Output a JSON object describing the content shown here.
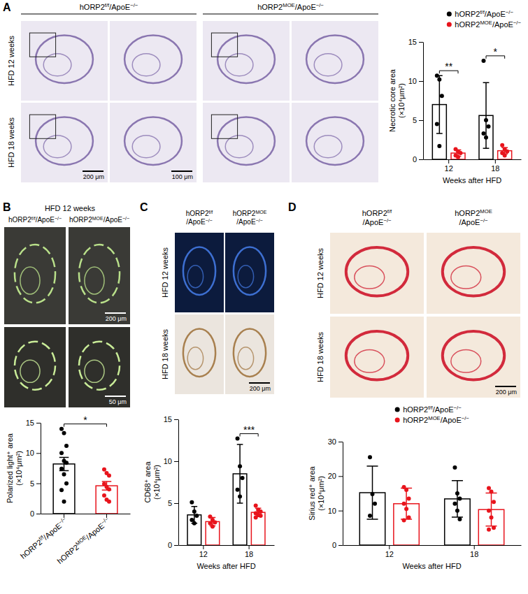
{
  "chart_data": [
    {
      "type": "bar",
      "y_label": "Necrotic core area (×10⁴μm²)",
      "x_label": "Weeks after HFD",
      "categories": [
        "12",
        "18"
      ],
      "series": [
        {
          "name": "hORP2f/f/ApoE−/−",
          "color": "#000000",
          "values": [
            7.0,
            5.6
          ],
          "errors": [
            3.7,
            4.2
          ],
          "points": [
            [
              10.7,
              10.2,
              8.1,
              4.5,
              1.7
            ],
            [
              12.6,
              5.0,
              4.2,
              3.3,
              2.8
            ]
          ]
        },
        {
          "name": "hORP2MOE/ApoE−/−",
          "color": "#e8141c",
          "values": [
            0.8,
            1.1
          ],
          "errors": [
            0.4,
            0.4
          ],
          "points": [
            [
              1.3,
              1.0,
              0.8,
              0.5,
              0.3
            ],
            [
              1.8,
              1.3,
              1.0,
              0.8,
              0.5
            ]
          ]
        }
      ],
      "ylim": [
        0,
        15
      ],
      "yticks": [
        0,
        5,
        10,
        15
      ],
      "legend": "top-right",
      "annotations": [
        {
          "text": "**",
          "x": "12"
        },
        {
          "text": "*",
          "x": "18"
        }
      ]
    },
    {
      "type": "bar",
      "y_label": "Polarized light⁺ area (×10⁴μm²)",
      "categories": [
        "hORP2f/f/ApoE−/−",
        "hORP2MOE/ApoE−/−"
      ],
      "colors": [
        "#000000",
        "#e8141c"
      ],
      "values": [
        8.2,
        4.6
      ],
      "errors": [
        1.1,
        0.7
      ],
      "points": [
        [
          14.0,
          13.3,
          11.2,
          10.0,
          8.7,
          8.4,
          7.4,
          6.5,
          5.0,
          3.9,
          2.0
        ],
        [
          7.3,
          6.7,
          6.3,
          4.9,
          4.4,
          4.0,
          3.0,
          2.3,
          2.0
        ]
      ],
      "ylim": [
        0,
        15
      ],
      "yticks": [
        0,
        5,
        10,
        15
      ],
      "annotations": [
        {
          "text": "*",
          "x": [
            "hORP2f/f/ApoE−/−",
            "hORP2MOE/ApoE−/−"
          ]
        }
      ]
    },
    {
      "type": "bar",
      "y_label": "CD68⁺ area (×10⁴μm²)",
      "x_label": "Weeks after HFD",
      "categories": [
        "12",
        "18"
      ],
      "series": [
        {
          "name": "hORP2f/f/ApoE−/−",
          "color": "#000000",
          "values": [
            3.6,
            8.5
          ],
          "errors": [
            1.0,
            3.5
          ],
          "points": [
            [
              5.1,
              4.0,
              3.5,
              3.0,
              2.6
            ],
            [
              12.7,
              9.4,
              8.0,
              6.6,
              5.8
            ]
          ]
        },
        {
          "name": "hORP2MOE/ApoE−/−",
          "color": "#e8141c",
          "values": [
            2.8,
            3.9
          ],
          "errors": [
            0.5,
            0.5
          ],
          "points": [
            [
              3.4,
              3.0,
              2.7,
              2.6,
              2.2
            ],
            [
              4.7,
              4.2,
              4.0,
              3.8,
              3.6,
              3.5,
              3.3
            ]
          ]
        }
      ],
      "ylim": [
        0,
        15
      ],
      "yticks": [
        0,
        5,
        10,
        15
      ],
      "annotations": [
        {
          "text": "***",
          "x": "18"
        }
      ]
    },
    {
      "type": "bar",
      "y_label": "Sirius red⁺ area (×10⁴μm²)",
      "x_label": "Weeks after HFD",
      "categories": [
        "12",
        "18"
      ],
      "series": [
        {
          "name": "hORP2f/f/ApoE−/−",
          "color": "#000000",
          "values": [
            15.2,
            13.4
          ],
          "errors": [
            7.7,
            5.3
          ],
          "points": [
            [
              25.5,
              14.8,
              12.0,
              8.5
            ],
            [
              22.5,
              15.0,
              13.5,
              12.0,
              10.0,
              7.5
            ]
          ]
        },
        {
          "name": "hORP2MOE/ApoE−/−",
          "color": "#e8141c",
          "values": [
            12.0,
            10.3
          ],
          "errors": [
            4.5,
            4.8
          ],
          "points": [
            [
              16.8,
              16.0,
              13.5,
              12.0,
              10.5,
              8.0,
              7.2
            ],
            [
              16.5,
              15.5,
              12.5,
              10.0,
              8.0,
              5.0,
              4.5
            ]
          ]
        }
      ],
      "ylim": [
        0,
        30
      ],
      "yticks": [
        0,
        10,
        20,
        30
      ],
      "legend": "top"
    }
  ],
  "micrographs": [
    {
      "letter": "A",
      "columns": [
        "hORP2f/f/ApoE−/−",
        "hORP2MOE/ApoE−/−"
      ],
      "rows": [
        "HFD 12 weeks",
        "HFD 18 weeks"
      ],
      "scale_bar_labels": [
        [
          null,
          null,
          null,
          null
        ],
        [
          "200 μm",
          "100 μm",
          null,
          null
        ]
      ]
    },
    {
      "letter": "B",
      "title": "HFD 12 weeks",
      "columns": [
        "hORP2f/f/ApoE−/−",
        "hORP2MOE/ApoE−/−"
      ],
      "scale_bar_labels": [
        [
          null,
          "200 μm"
        ],
        [
          null,
          "50 μm"
        ]
      ]
    },
    {
      "letter": "C",
      "columns": [
        "hORP2f/f/ApoE−/−",
        "hORP2MOE/ApoE−/−"
      ],
      "rows": [
        "HFD 12 weeks",
        "HFD 18 weeks"
      ],
      "scale_bar_labels": [
        [
          null,
          null
        ],
        [
          null,
          "200 μm"
        ]
      ]
    },
    {
      "letter": "D",
      "columns": [
        "hORP2f/f/ApoE−/−",
        "hORP2MOE/ApoE−/−"
      ],
      "rows": [
        "HFD 12 weeks",
        "HFD 18 weeks"
      ],
      "scale_bar_labels": [
        [
          null,
          null
        ],
        [
          null,
          "200 μm"
        ]
      ]
    }
  ]
}
